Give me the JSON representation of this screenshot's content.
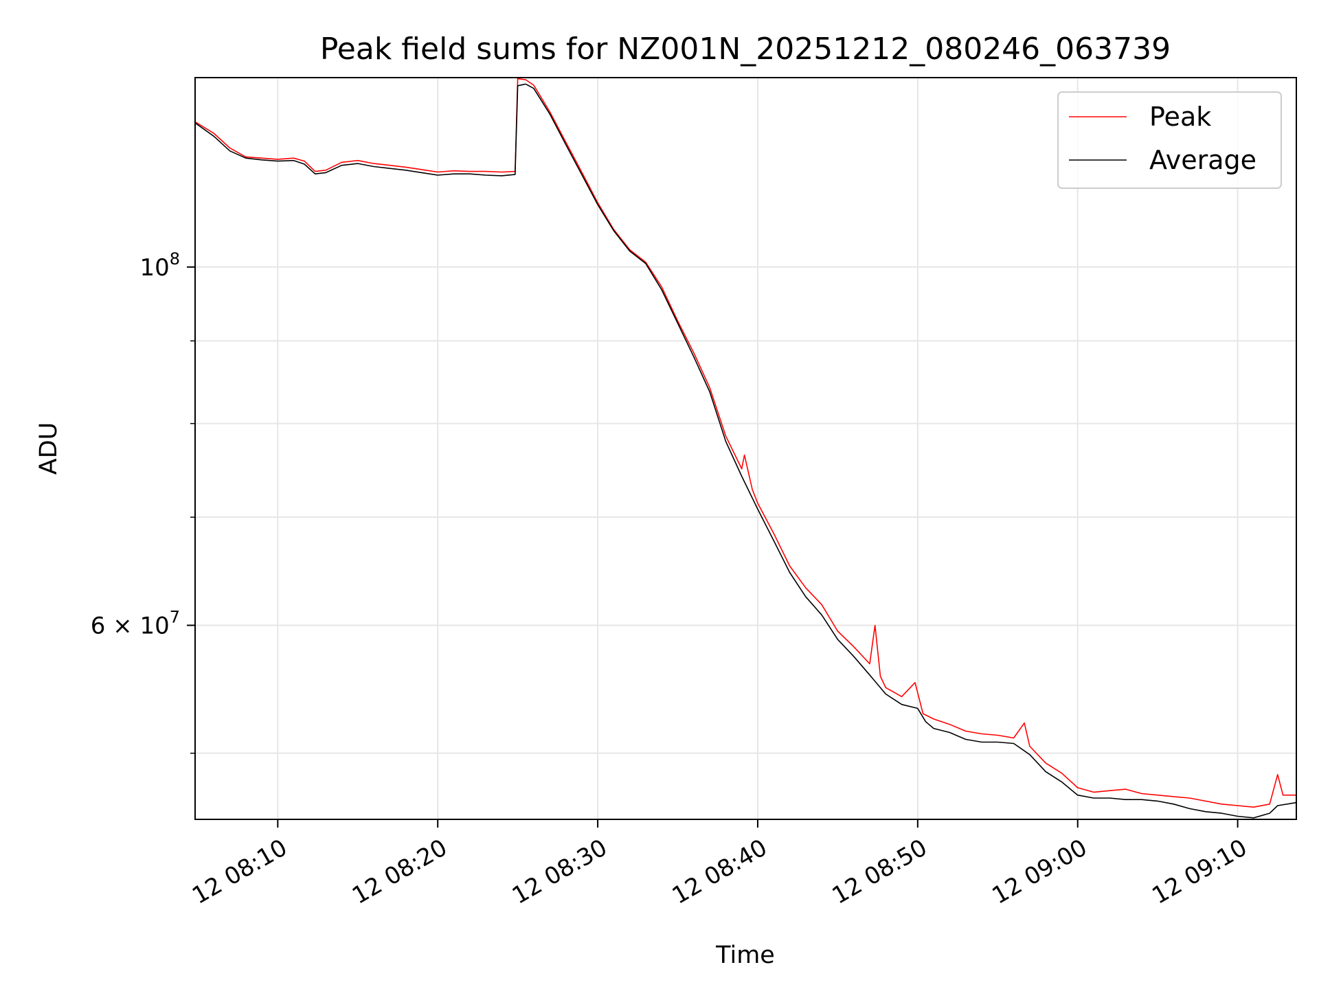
{
  "chart_data": {
    "type": "line",
    "title": "Peak field sums for NZ001N_20251212_080246_063739",
    "xlabel": "Time",
    "ylabel": "ADU",
    "y_scale": "log",
    "grid": true,
    "legend_position": "top-right",
    "xlim": [
      "08:04:50",
      "09:13:40"
    ],
    "ylim": [
      45500000,
      131000000
    ],
    "x_ticks": [
      {
        "time": "08:10",
        "label": "12 08:10"
      },
      {
        "time": "08:20",
        "label": "12 08:20"
      },
      {
        "time": "08:30",
        "label": "12 08:30"
      },
      {
        "time": "08:40",
        "label": "12 08:40"
      },
      {
        "time": "08:50",
        "label": "12 08:50"
      },
      {
        "time": "09:00",
        "label": "12 09:00"
      },
      {
        "time": "09:10",
        "label": "12 09:10"
      }
    ],
    "y_major_ticks": [
      {
        "value": 100000000,
        "base": "10",
        "exp": "8"
      },
      {
        "value": 60000000,
        "base": "6 × 10",
        "exp": "7"
      }
    ],
    "y_minor_ticks": [
      50000000,
      70000000,
      80000000,
      90000000
    ],
    "series": [
      {
        "name": "Peak",
        "color": "#ff0000",
        "points": [
          [
            "08:04:50",
            123000000
          ],
          [
            "08:06:00",
            121000000
          ],
          [
            "08:07:00",
            118500000
          ],
          [
            "08:08:00",
            117000000
          ],
          [
            "08:09:00",
            116800000
          ],
          [
            "08:10:00",
            116600000
          ],
          [
            "08:11:00",
            116800000
          ],
          [
            "08:11:40",
            116300000
          ],
          [
            "08:12:20",
            114600000
          ],
          [
            "08:13:00",
            114800000
          ],
          [
            "08:14:00",
            116100000
          ],
          [
            "08:15:00",
            116400000
          ],
          [
            "08:16:00",
            115900000
          ],
          [
            "08:17:00",
            115600000
          ],
          [
            "08:18:00",
            115300000
          ],
          [
            "08:19:00",
            114900000
          ],
          [
            "08:20:00",
            114500000
          ],
          [
            "08:21:00",
            114700000
          ],
          [
            "08:22:00",
            114600000
          ],
          [
            "08:23:00",
            114600000
          ],
          [
            "08:24:00",
            114500000
          ],
          [
            "08:24:50",
            114600000
          ],
          [
            "08:25:00",
            130800000
          ],
          [
            "08:25:30",
            130600000
          ],
          [
            "08:26:00",
            129600000
          ],
          [
            "08:27:00",
            124800000
          ],
          [
            "08:28:00",
            119500000
          ],
          [
            "08:29:00",
            114500000
          ],
          [
            "08:30:00",
            109600000
          ],
          [
            "08:31:00",
            105500000
          ],
          [
            "08:32:00",
            102500000
          ],
          [
            "08:33:00",
            100700000
          ],
          [
            "08:34:00",
            97200000
          ],
          [
            "08:35:00",
            92600000
          ],
          [
            "08:36:00",
            88500000
          ],
          [
            "08:37:00",
            84200000
          ],
          [
            "08:38:00",
            78600000
          ],
          [
            "08:39:00",
            75000000
          ],
          [
            "08:39:10",
            76500000
          ],
          [
            "08:39:40",
            72800000
          ],
          [
            "08:40:00",
            71400000
          ],
          [
            "08:41:00",
            68400000
          ],
          [
            "08:42:00",
            65300000
          ],
          [
            "08:43:00",
            63300000
          ],
          [
            "08:44:00",
            61800000
          ],
          [
            "08:45:00",
            59500000
          ],
          [
            "08:46:00",
            58200000
          ],
          [
            "08:47:00",
            56800000
          ],
          [
            "08:47:20",
            60000000
          ],
          [
            "08:47:40",
            55800000
          ],
          [
            "08:48:00",
            54900000
          ],
          [
            "08:49:00",
            54200000
          ],
          [
            "08:49:50",
            55300000
          ],
          [
            "08:50:20",
            52900000
          ],
          [
            "08:51:00",
            52500000
          ],
          [
            "08:52:00",
            52100000
          ],
          [
            "08:53:00",
            51600000
          ],
          [
            "08:54:00",
            51400000
          ],
          [
            "08:55:00",
            51300000
          ],
          [
            "08:56:00",
            51100000
          ],
          [
            "08:56:40",
            52200000
          ],
          [
            "08:57:00",
            50500000
          ],
          [
            "08:58:00",
            49300000
          ],
          [
            "08:59:00",
            48600000
          ],
          [
            "09:00:00",
            47600000
          ],
          [
            "09:01:00",
            47300000
          ],
          [
            "09:02:00",
            47400000
          ],
          [
            "09:03:00",
            47500000
          ],
          [
            "09:04:00",
            47200000
          ],
          [
            "09:05:00",
            47100000
          ],
          [
            "09:06:00",
            47000000
          ],
          [
            "09:07:00",
            46900000
          ],
          [
            "09:08:00",
            46700000
          ],
          [
            "09:09:00",
            46500000
          ],
          [
            "09:10:00",
            46400000
          ],
          [
            "09:11:00",
            46300000
          ],
          [
            "09:12:00",
            46500000
          ],
          [
            "09:12:30",
            48500000
          ],
          [
            "09:12:50",
            47100000
          ],
          [
            "09:13:40",
            47100000
          ]
        ]
      },
      {
        "name": "Average",
        "color": "#000000",
        "points": [
          [
            "08:04:50",
            122800000
          ],
          [
            "08:06:00",
            120500000
          ],
          [
            "08:07:00",
            118000000
          ],
          [
            "08:08:00",
            116800000
          ],
          [
            "08:09:00",
            116500000
          ],
          [
            "08:10:00",
            116300000
          ],
          [
            "08:11:00",
            116400000
          ],
          [
            "08:11:40",
            115800000
          ],
          [
            "08:12:20",
            114200000
          ],
          [
            "08:13:00",
            114400000
          ],
          [
            "08:14:00",
            115600000
          ],
          [
            "08:15:00",
            115900000
          ],
          [
            "08:16:00",
            115400000
          ],
          [
            "08:17:00",
            115100000
          ],
          [
            "08:18:00",
            114800000
          ],
          [
            "08:19:00",
            114400000
          ],
          [
            "08:20:00",
            114000000
          ],
          [
            "08:21:00",
            114200000
          ],
          [
            "08:22:00",
            114200000
          ],
          [
            "08:23:00",
            114000000
          ],
          [
            "08:24:00",
            113900000
          ],
          [
            "08:24:50",
            114100000
          ],
          [
            "08:25:00",
            129500000
          ],
          [
            "08:25:30",
            129800000
          ],
          [
            "08:26:00",
            129000000
          ],
          [
            "08:27:00",
            124400000
          ],
          [
            "08:28:00",
            119100000
          ],
          [
            "08:29:00",
            114100000
          ],
          [
            "08:30:00",
            109300000
          ],
          [
            "08:31:00",
            105300000
          ],
          [
            "08:32:00",
            102300000
          ],
          [
            "08:33:00",
            100500000
          ],
          [
            "08:34:00",
            96800000
          ],
          [
            "08:35:00",
            92300000
          ],
          [
            "08:36:00",
            88000000
          ],
          [
            "08:37:00",
            83700000
          ],
          [
            "08:38:00",
            78000000
          ],
          [
            "08:39:00",
            74200000
          ],
          [
            "08:40:00",
            70800000
          ],
          [
            "08:41:00",
            67700000
          ],
          [
            "08:42:00",
            64700000
          ],
          [
            "08:43:00",
            62500000
          ],
          [
            "08:44:00",
            60900000
          ],
          [
            "08:45:00",
            58800000
          ],
          [
            "08:46:00",
            57400000
          ],
          [
            "08:47:00",
            55900000
          ],
          [
            "08:48:00",
            54400000
          ],
          [
            "08:49:00",
            53600000
          ],
          [
            "08:50:00",
            53300000
          ],
          [
            "08:50:30",
            52300000
          ],
          [
            "08:51:00",
            51800000
          ],
          [
            "08:52:00",
            51500000
          ],
          [
            "08:53:00",
            51000000
          ],
          [
            "08:54:00",
            50800000
          ],
          [
            "08:55:00",
            50800000
          ],
          [
            "08:56:00",
            50700000
          ],
          [
            "08:57:00",
            49900000
          ],
          [
            "08:58:00",
            48700000
          ],
          [
            "08:59:00",
            48000000
          ],
          [
            "09:00:00",
            47100000
          ],
          [
            "09:01:00",
            46900000
          ],
          [
            "09:02:00",
            46900000
          ],
          [
            "09:03:00",
            46800000
          ],
          [
            "09:04:00",
            46800000
          ],
          [
            "09:05:00",
            46700000
          ],
          [
            "09:06:00",
            46500000
          ],
          [
            "09:07:00",
            46200000
          ],
          [
            "09:08:00",
            46000000
          ],
          [
            "09:09:00",
            45900000
          ],
          [
            "09:10:00",
            45700000
          ],
          [
            "09:11:00",
            45600000
          ],
          [
            "09:12:00",
            45900000
          ],
          [
            "09:12:30",
            46400000
          ],
          [
            "09:13:40",
            46600000
          ]
        ]
      }
    ]
  }
}
